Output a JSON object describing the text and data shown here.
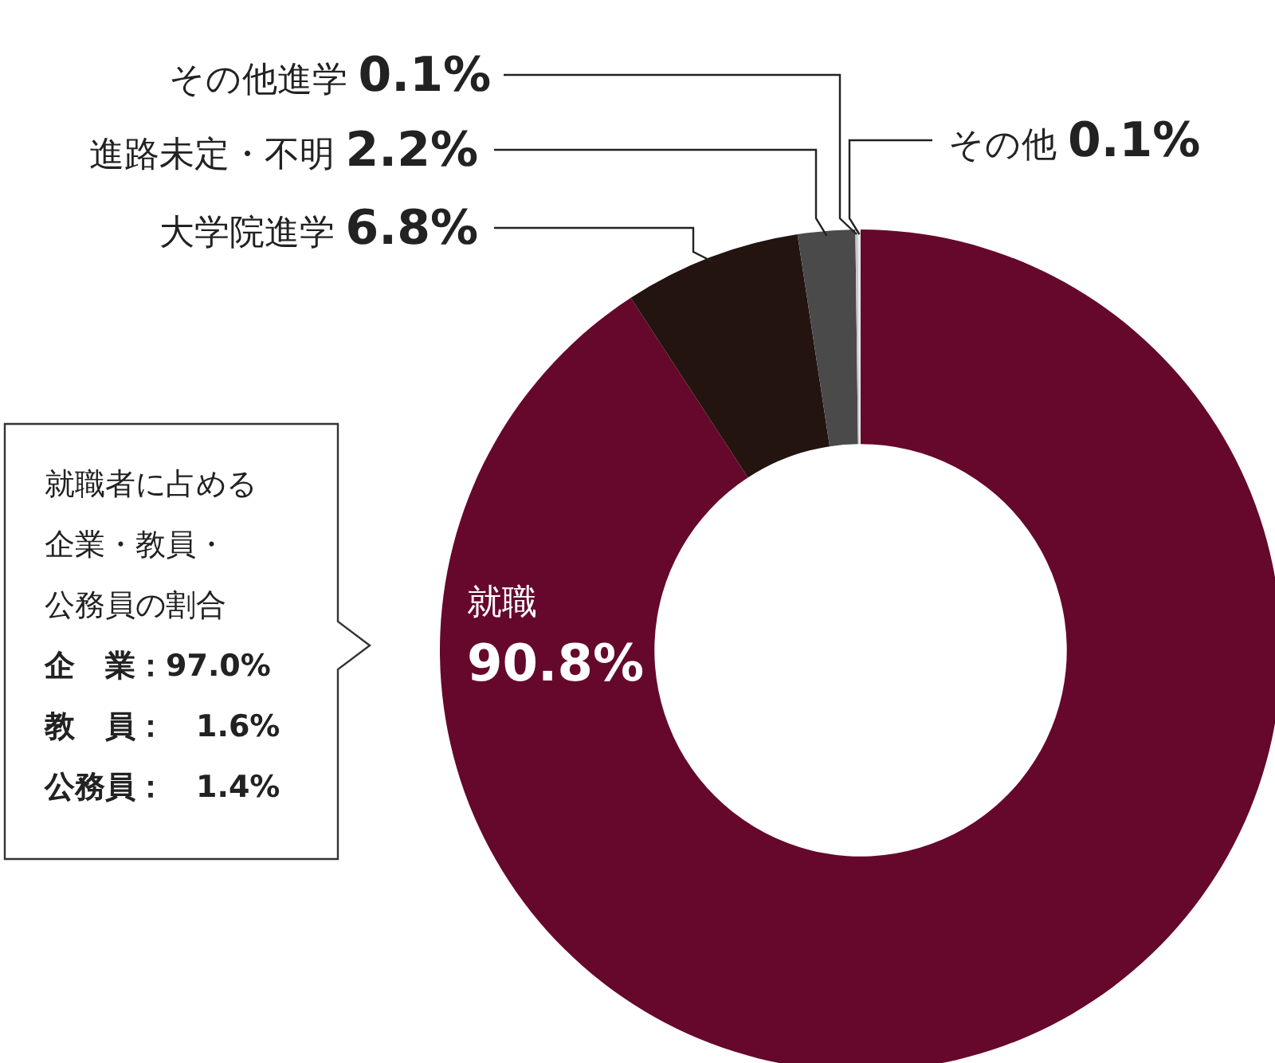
{
  "chart_data": {
    "type": "donut",
    "categories": [
      "就職",
      "大学院進学",
      "進路未定・不明",
      "その他進学",
      "その他"
    ],
    "values": [
      90.8,
      6.8,
      2.2,
      0.1,
      0.1
    ],
    "colors": [
      "#66082c",
      "#23140f",
      "#4a4a4a",
      "#c8c8c8",
      "#e6e6e6"
    ],
    "value_labels": [
      "90.8%",
      "6.8%",
      "2.2%",
      "0.1%",
      "0.1%"
    ],
    "legend": false,
    "annotations": [
      "就職者に占める",
      "企業・教員・",
      "公務員の割合",
      "企　業：97.0%",
      "教　員：　1.6%",
      "公務員：　1.4%"
    ]
  }
}
